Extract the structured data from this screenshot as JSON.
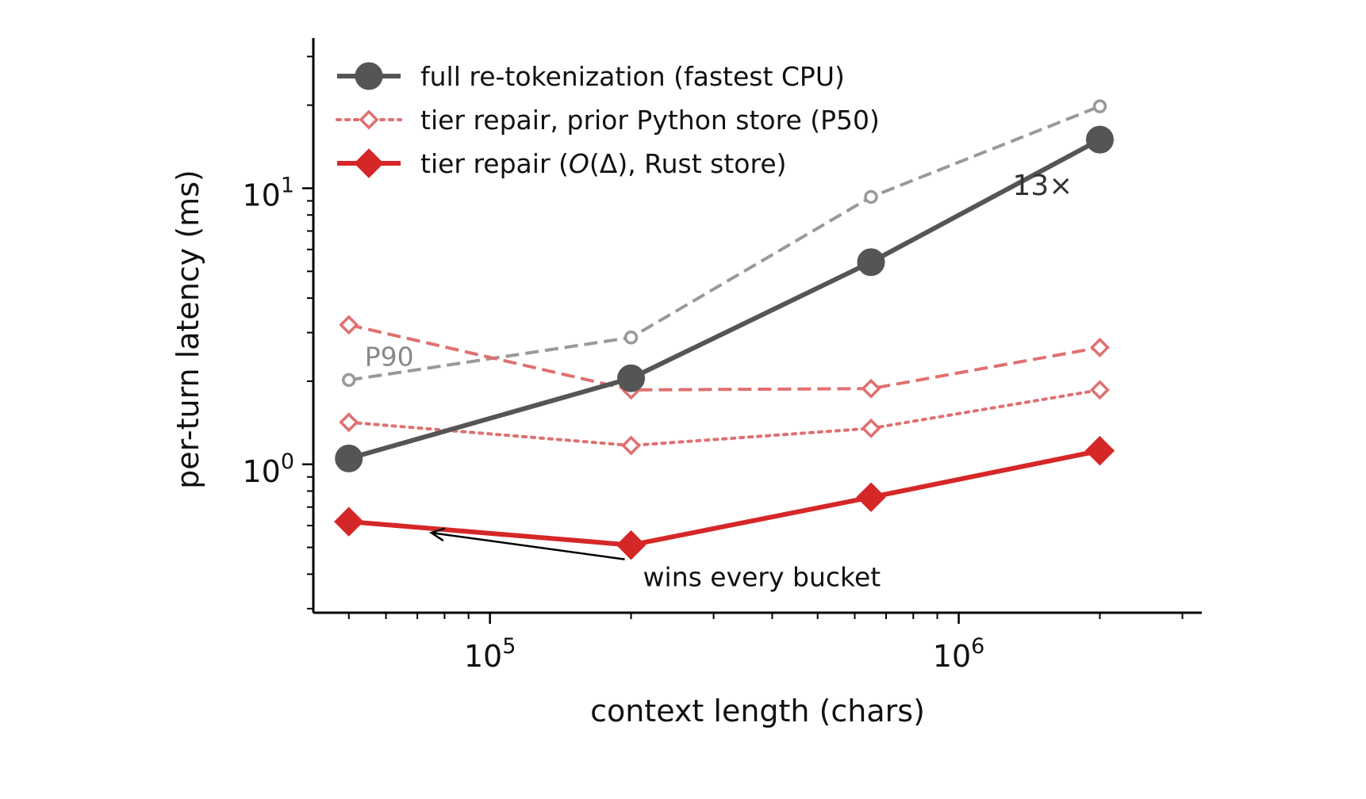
{
  "chart_data": {
    "type": "line",
    "xlabel": "context length (chars)",
    "ylabel": "per-turn latency (ms)",
    "xscale": "log",
    "yscale": "log",
    "xlim": [
      42000,
      3300000
    ],
    "ylim": [
      0.29,
      35
    ],
    "x_ticks": [
      {
        "value": 100000,
        "base": "10",
        "exp": "5"
      },
      {
        "value": 1000000,
        "base": "10",
        "exp": "6"
      }
    ],
    "y_ticks": [
      {
        "value": 1,
        "base": "10",
        "exp": "0"
      },
      {
        "value": 10,
        "base": "10",
        "exp": "1"
      }
    ],
    "x": [
      50000,
      200000,
      650000,
      2000000
    ],
    "series": [
      {
        "name": "full re-tokenization (fastest CPU)",
        "values": [
          1.05,
          2.05,
          5.4,
          15.0
        ],
        "color": "#555555",
        "style": "solid",
        "marker": "circle-filled",
        "legend": true
      },
      {
        "name": "tier repair, prior Python store (P50)",
        "values": [
          1.42,
          1.17,
          1.35,
          1.86
        ],
        "color": "#e07070",
        "style": "dotted",
        "marker": "diamond-open",
        "legend": true
      },
      {
        "name": "tier repair (O(Δ), Rust store)",
        "values": [
          0.62,
          0.51,
          0.76,
          1.12
        ],
        "color": "#d62728",
        "style": "solid",
        "marker": "diamond-filled",
        "legend": true
      },
      {
        "name": "",
        "values": [
          2.02,
          2.88,
          9.3,
          19.8
        ],
        "color": "#999999",
        "style": "dashed",
        "marker": "circle-open",
        "legend": false
      },
      {
        "name": "",
        "values": [
          3.2,
          1.86,
          1.88,
          2.65
        ],
        "color": "#e07070",
        "style": "dashed",
        "marker": "diamond-open",
        "legend": false
      }
    ],
    "legend": {
      "position": "top-left",
      "entries": [
        {
          "pre": "full re-tokenization (fastest CPU)",
          "italic": "",
          "post": ""
        },
        {
          "pre": "tier repair, prior Python store (P50)",
          "italic": "",
          "post": ""
        },
        {
          "pre": "tier repair (",
          "italic": "O",
          "post": "(Δ), Rust store)"
        }
      ]
    },
    "annotations": [
      {
        "id": "p90",
        "text": "P90",
        "color": "#888888"
      },
      {
        "id": "speedup",
        "text": "13×",
        "color": "#333333"
      },
      {
        "id": "wins",
        "text": "wins every bucket",
        "color": "#111111"
      }
    ],
    "grid": false
  }
}
